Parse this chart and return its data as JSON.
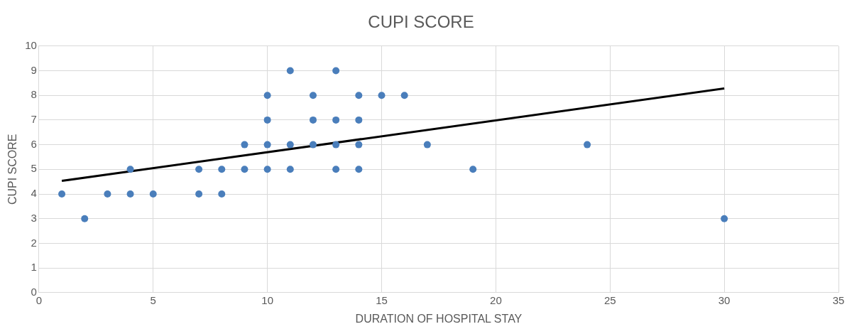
{
  "chart_data": {
    "type": "scatter",
    "title": "CUPI SCORE",
    "xlabel": "DURATION OF HOSPITAL STAY",
    "ylabel": "CUPI SCORE",
    "xlim": [
      0,
      35
    ],
    "xticks": [
      0,
      5,
      10,
      15,
      20,
      25,
      30,
      35
    ],
    "ylim": [
      0,
      10
    ],
    "yticks": [
      0,
      1,
      2,
      3,
      4,
      5,
      6,
      7,
      8,
      9,
      10
    ],
    "grid": true,
    "marker": "circle",
    "series": [
      {
        "color": "#4a7ebb",
        "x": [
          1,
          2,
          3,
          4,
          4,
          5,
          7,
          7,
          8,
          8,
          9,
          9,
          10,
          10,
          10,
          10,
          11,
          11,
          11,
          12,
          12,
          12,
          13,
          13,
          13,
          13,
          14,
          14,
          14,
          14,
          15,
          16,
          17,
          19,
          24,
          30
        ],
        "values": [
          4,
          3,
          4,
          5,
          4,
          4,
          5,
          4,
          5,
          4,
          6,
          5,
          8,
          7,
          6,
          5,
          9,
          6,
          5,
          8,
          7,
          6,
          9,
          7,
          6,
          5,
          8,
          7,
          6,
          5,
          8,
          8,
          6,
          5,
          6,
          3
        ]
      },
      {
        "type": "line",
        "color": "#000000",
        "marker": "none",
        "x": [
          1,
          30
        ],
        "values": [
          4.53,
          8.28
        ]
      }
    ]
  }
}
